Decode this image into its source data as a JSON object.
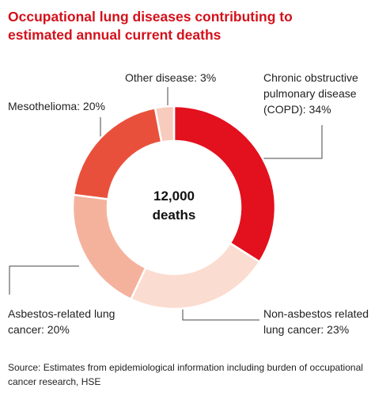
{
  "chart_data": {
    "type": "donut",
    "title": "Occupational lung diseases contributing to estimated annual current deaths",
    "center_label": "12,000 deaths",
    "values": [
      34,
      23,
      20,
      20,
      3
    ],
    "value_labels": [
      "Chronic obstructive pulmonary disease (COPD): 34%",
      "Non-asbestos related lung cancer: 23%",
      "Asbestos-related lung cancer: 20%",
      "Mesothelioma: 20%",
      "Other disease: 3%"
    ],
    "colors": [
      "#e3101d",
      "#fbdcd0",
      "#f4b29d",
      "#e9503b",
      "#f7cbbd"
    ],
    "source": "Source: Estimates from epidemiological information including burden of occupational cancer research, HSE"
  }
}
